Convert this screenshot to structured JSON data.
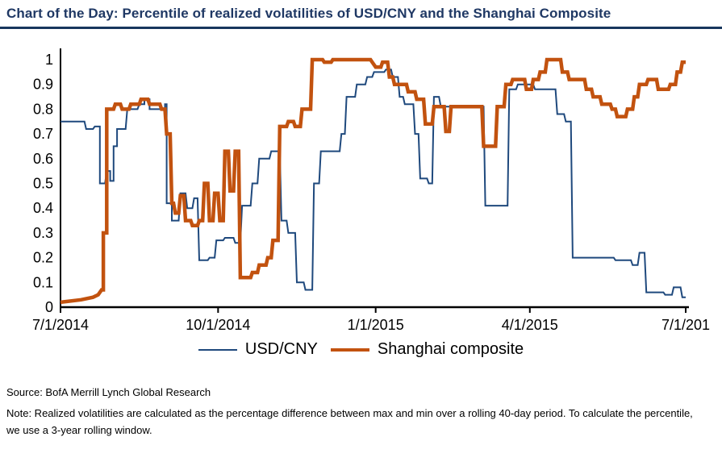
{
  "header": {
    "title": "Chart of the Day: Percentile of realized volatilities of USD/CNY and the Shanghai Composite"
  },
  "chart_data": {
    "type": "line",
    "title": "Percentile of realized volatilities of USD/CNY and the Shanghai Composite",
    "grid": false,
    "legend_position": "bottom",
    "x_axis": {
      "tick_labels": [
        "7/1/2014",
        "10/1/2014",
        "1/1/2015",
        "4/1/2015",
        "7/1/201"
      ],
      "tick_days": [
        0,
        92,
        184,
        274,
        365
      ],
      "range_days": [
        0,
        365
      ]
    },
    "y_axis": {
      "tick_labels": [
        "0",
        "0.1",
        "0.2",
        "0.3",
        "0.4",
        "0.5",
        "0.6",
        "0.7",
        "0.8",
        "0.9",
        "1"
      ],
      "tick_values": [
        0,
        0.1,
        0.2,
        0.3,
        0.4,
        0.5,
        0.6,
        0.7,
        0.8,
        0.9,
        1
      ],
      "range": [
        0,
        1
      ]
    },
    "series": [
      {
        "name": "USD/CNY",
        "color": "#1f497d",
        "width": 2,
        "points": [
          [
            0,
            0.75
          ],
          [
            14,
            0.75
          ],
          [
            15,
            0.72
          ],
          [
            19,
            0.72
          ],
          [
            20,
            0.73
          ],
          [
            23,
            0.73
          ],
          [
            23,
            0.5
          ],
          [
            26,
            0.5
          ],
          [
            27,
            0.55
          ],
          [
            29,
            0.55
          ],
          [
            29,
            0.51
          ],
          [
            31,
            0.51
          ],
          [
            31,
            0.65
          ],
          [
            33,
            0.65
          ],
          [
            33,
            0.72
          ],
          [
            38,
            0.72
          ],
          [
            39,
            0.8
          ],
          [
            45,
            0.8
          ],
          [
            46,
            0.82
          ],
          [
            49,
            0.82
          ],
          [
            49,
            0.84
          ],
          [
            52,
            0.84
          ],
          [
            52,
            0.8
          ],
          [
            61,
            0.8
          ],
          [
            61,
            0.82
          ],
          [
            62,
            0.82
          ],
          [
            62,
            0.42
          ],
          [
            65,
            0.42
          ],
          [
            65,
            0.35
          ],
          [
            69,
            0.35
          ],
          [
            70,
            0.46
          ],
          [
            73,
            0.46
          ],
          [
            74,
            0.4
          ],
          [
            77,
            0.4
          ],
          [
            78,
            0.44
          ],
          [
            80,
            0.44
          ],
          [
            81,
            0.19
          ],
          [
            86,
            0.19
          ],
          [
            87,
            0.2
          ],
          [
            90,
            0.2
          ],
          [
            91,
            0.27
          ],
          [
            95,
            0.27
          ],
          [
            96,
            0.28
          ],
          [
            101,
            0.28
          ],
          [
            102,
            0.26
          ],
          [
            105,
            0.26
          ],
          [
            106,
            0.41
          ],
          [
            111,
            0.41
          ],
          [
            112,
            0.5
          ],
          [
            115,
            0.5
          ],
          [
            116,
            0.6
          ],
          [
            122,
            0.6
          ],
          [
            123,
            0.63
          ],
          [
            128,
            0.63
          ],
          [
            129,
            0.35
          ],
          [
            132,
            0.35
          ],
          [
            133,
            0.3
          ],
          [
            137,
            0.3
          ],
          [
            138,
            0.1
          ],
          [
            142,
            0.1
          ],
          [
            143,
            0.07
          ],
          [
            147,
            0.07
          ],
          [
            148,
            0.5
          ],
          [
            151,
            0.5
          ],
          [
            152,
            0.63
          ],
          [
            163,
            0.63
          ],
          [
            164,
            0.7
          ],
          [
            166,
            0.7
          ],
          [
            167,
            0.85
          ],
          [
            172,
            0.85
          ],
          [
            173,
            0.9
          ],
          [
            178,
            0.9
          ],
          [
            179,
            0.93
          ],
          [
            182,
            0.93
          ],
          [
            183,
            0.95
          ],
          [
            189,
            0.95
          ],
          [
            190,
            0.96
          ],
          [
            193,
            0.96
          ],
          [
            194,
            0.93
          ],
          [
            197,
            0.93
          ],
          [
            198,
            0.85
          ],
          [
            200,
            0.85
          ],
          [
            201,
            0.82
          ],
          [
            206,
            0.82
          ],
          [
            207,
            0.7
          ],
          [
            209,
            0.7
          ],
          [
            210,
            0.52
          ],
          [
            214,
            0.52
          ],
          [
            215,
            0.5
          ],
          [
            217,
            0.5
          ],
          [
            218,
            0.85
          ],
          [
            221,
            0.85
          ],
          [
            222,
            0.81
          ],
          [
            247,
            0.81
          ],
          [
            248,
            0.41
          ],
          [
            261,
            0.41
          ],
          [
            262,
            0.88
          ],
          [
            266,
            0.88
          ],
          [
            267,
            0.9
          ],
          [
            276,
            0.9
          ],
          [
            277,
            0.88
          ],
          [
            289,
            0.88
          ],
          [
            290,
            0.78
          ],
          [
            294,
            0.78
          ],
          [
            295,
            0.75
          ],
          [
            298,
            0.75
          ],
          [
            299,
            0.2
          ],
          [
            323,
            0.2
          ],
          [
            324,
            0.19
          ],
          [
            333,
            0.19
          ],
          [
            334,
            0.17
          ],
          [
            337,
            0.17
          ],
          [
            338,
            0.22
          ],
          [
            341,
            0.22
          ],
          [
            342,
            0.06
          ],
          [
            352,
            0.06
          ],
          [
            353,
            0.05
          ],
          [
            357,
            0.05
          ],
          [
            358,
            0.08
          ],
          [
            362,
            0.08
          ],
          [
            363,
            0.04
          ],
          [
            365,
            0.04
          ]
        ]
      },
      {
        "name": "Shanghai composite",
        "color": "#c2520f",
        "width": 4.5,
        "points": [
          [
            0,
            0.02
          ],
          [
            12,
            0.03
          ],
          [
            19,
            0.04
          ],
          [
            22,
            0.05
          ],
          [
            24,
            0.07
          ],
          [
            25,
            0.07
          ],
          [
            25,
            0.3
          ],
          [
            27,
            0.3
          ],
          [
            27,
            0.8
          ],
          [
            31,
            0.8
          ],
          [
            32,
            0.82
          ],
          [
            35,
            0.82
          ],
          [
            36,
            0.8
          ],
          [
            40,
            0.8
          ],
          [
            41,
            0.82
          ],
          [
            46,
            0.82
          ],
          [
            47,
            0.84
          ],
          [
            51,
            0.84
          ],
          [
            52,
            0.82
          ],
          [
            58,
            0.82
          ],
          [
            59,
            0.8
          ],
          [
            61,
            0.8
          ],
          [
            62,
            0.7
          ],
          [
            64,
            0.7
          ],
          [
            65,
            0.42
          ],
          [
            66,
            0.42
          ],
          [
            67,
            0.38
          ],
          [
            69,
            0.38
          ],
          [
            70,
            0.45
          ],
          [
            72,
            0.45
          ],
          [
            73,
            0.35
          ],
          [
            76,
            0.35
          ],
          [
            77,
            0.33
          ],
          [
            80,
            0.33
          ],
          [
            81,
            0.35
          ],
          [
            83,
            0.35
          ],
          [
            84,
            0.5
          ],
          [
            86,
            0.5
          ],
          [
            87,
            0.35
          ],
          [
            89,
            0.35
          ],
          [
            90,
            0.46
          ],
          [
            92,
            0.46
          ],
          [
            93,
            0.35
          ],
          [
            95,
            0.35
          ],
          [
            96,
            0.63
          ],
          [
            98,
            0.63
          ],
          [
            99,
            0.47
          ],
          [
            101,
            0.47
          ],
          [
            102,
            0.63
          ],
          [
            104,
            0.63
          ],
          [
            105,
            0.12
          ],
          [
            111,
            0.12
          ],
          [
            112,
            0.14
          ],
          [
            115,
            0.14
          ],
          [
            116,
            0.17
          ],
          [
            120,
            0.17
          ],
          [
            121,
            0.2
          ],
          [
            123,
            0.2
          ],
          [
            124,
            0.27
          ],
          [
            127,
            0.27
          ],
          [
            128,
            0.73
          ],
          [
            132,
            0.73
          ],
          [
            133,
            0.75
          ],
          [
            136,
            0.75
          ],
          [
            137,
            0.73
          ],
          [
            140,
            0.73
          ],
          [
            141,
            0.8
          ],
          [
            146,
            0.8
          ],
          [
            147,
            1.0
          ],
          [
            153,
            1.0
          ],
          [
            154,
            0.99
          ],
          [
            158,
            0.99
          ],
          [
            159,
            1.0
          ],
          [
            181,
            1.0
          ],
          [
            182,
            0.99
          ],
          [
            184,
            0.97
          ],
          [
            187,
            0.97
          ],
          [
            188,
            0.99
          ],
          [
            191,
            0.99
          ],
          [
            192,
            0.93
          ],
          [
            194,
            0.93
          ],
          [
            195,
            0.9
          ],
          [
            202,
            0.9
          ],
          [
            203,
            0.87
          ],
          [
            207,
            0.87
          ],
          [
            208,
            0.84
          ],
          [
            212,
            0.84
          ],
          [
            213,
            0.74
          ],
          [
            217,
            0.74
          ],
          [
            218,
            0.81
          ],
          [
            224,
            0.81
          ],
          [
            225,
            0.71
          ],
          [
            227,
            0.71
          ],
          [
            228,
            0.81
          ],
          [
            246,
            0.81
          ],
          [
            247,
            0.65
          ],
          [
            254,
            0.65
          ],
          [
            255,
            0.81
          ],
          [
            259,
            0.81
          ],
          [
            260,
            0.9
          ],
          [
            263,
            0.9
          ],
          [
            264,
            0.92
          ],
          [
            271,
            0.92
          ],
          [
            272,
            0.88
          ],
          [
            275,
            0.88
          ],
          [
            276,
            0.92
          ],
          [
            279,
            0.92
          ],
          [
            280,
            0.95
          ],
          [
            283,
            0.95
          ],
          [
            284,
            1.0
          ],
          [
            292,
            1.0
          ],
          [
            293,
            0.95
          ],
          [
            296,
            0.95
          ],
          [
            297,
            0.92
          ],
          [
            306,
            0.92
          ],
          [
            307,
            0.88
          ],
          [
            310,
            0.88
          ],
          [
            311,
            0.85
          ],
          [
            315,
            0.85
          ],
          [
            316,
            0.82
          ],
          [
            321,
            0.82
          ],
          [
            322,
            0.8
          ],
          [
            324,
            0.8
          ],
          [
            325,
            0.77
          ],
          [
            330,
            0.77
          ],
          [
            331,
            0.8
          ],
          [
            334,
            0.8
          ],
          [
            335,
            0.85
          ],
          [
            337,
            0.85
          ],
          [
            338,
            0.9
          ],
          [
            342,
            0.9
          ],
          [
            343,
            0.92
          ],
          [
            348,
            0.92
          ],
          [
            349,
            0.88
          ],
          [
            355,
            0.88
          ],
          [
            356,
            0.9
          ],
          [
            359,
            0.9
          ],
          [
            360,
            0.95
          ],
          [
            362,
            0.95
          ],
          [
            363,
            0.99
          ],
          [
            365,
            0.99
          ]
        ]
      }
    ]
  },
  "footer": {
    "source": "Source: BofA Merrill Lynch Global Research",
    "note": "Note: Realized volatilities are calculated as the percentage difference between max and min over a rolling 40-day period. To calculate the percentile, we use a 3-year rolling window."
  }
}
